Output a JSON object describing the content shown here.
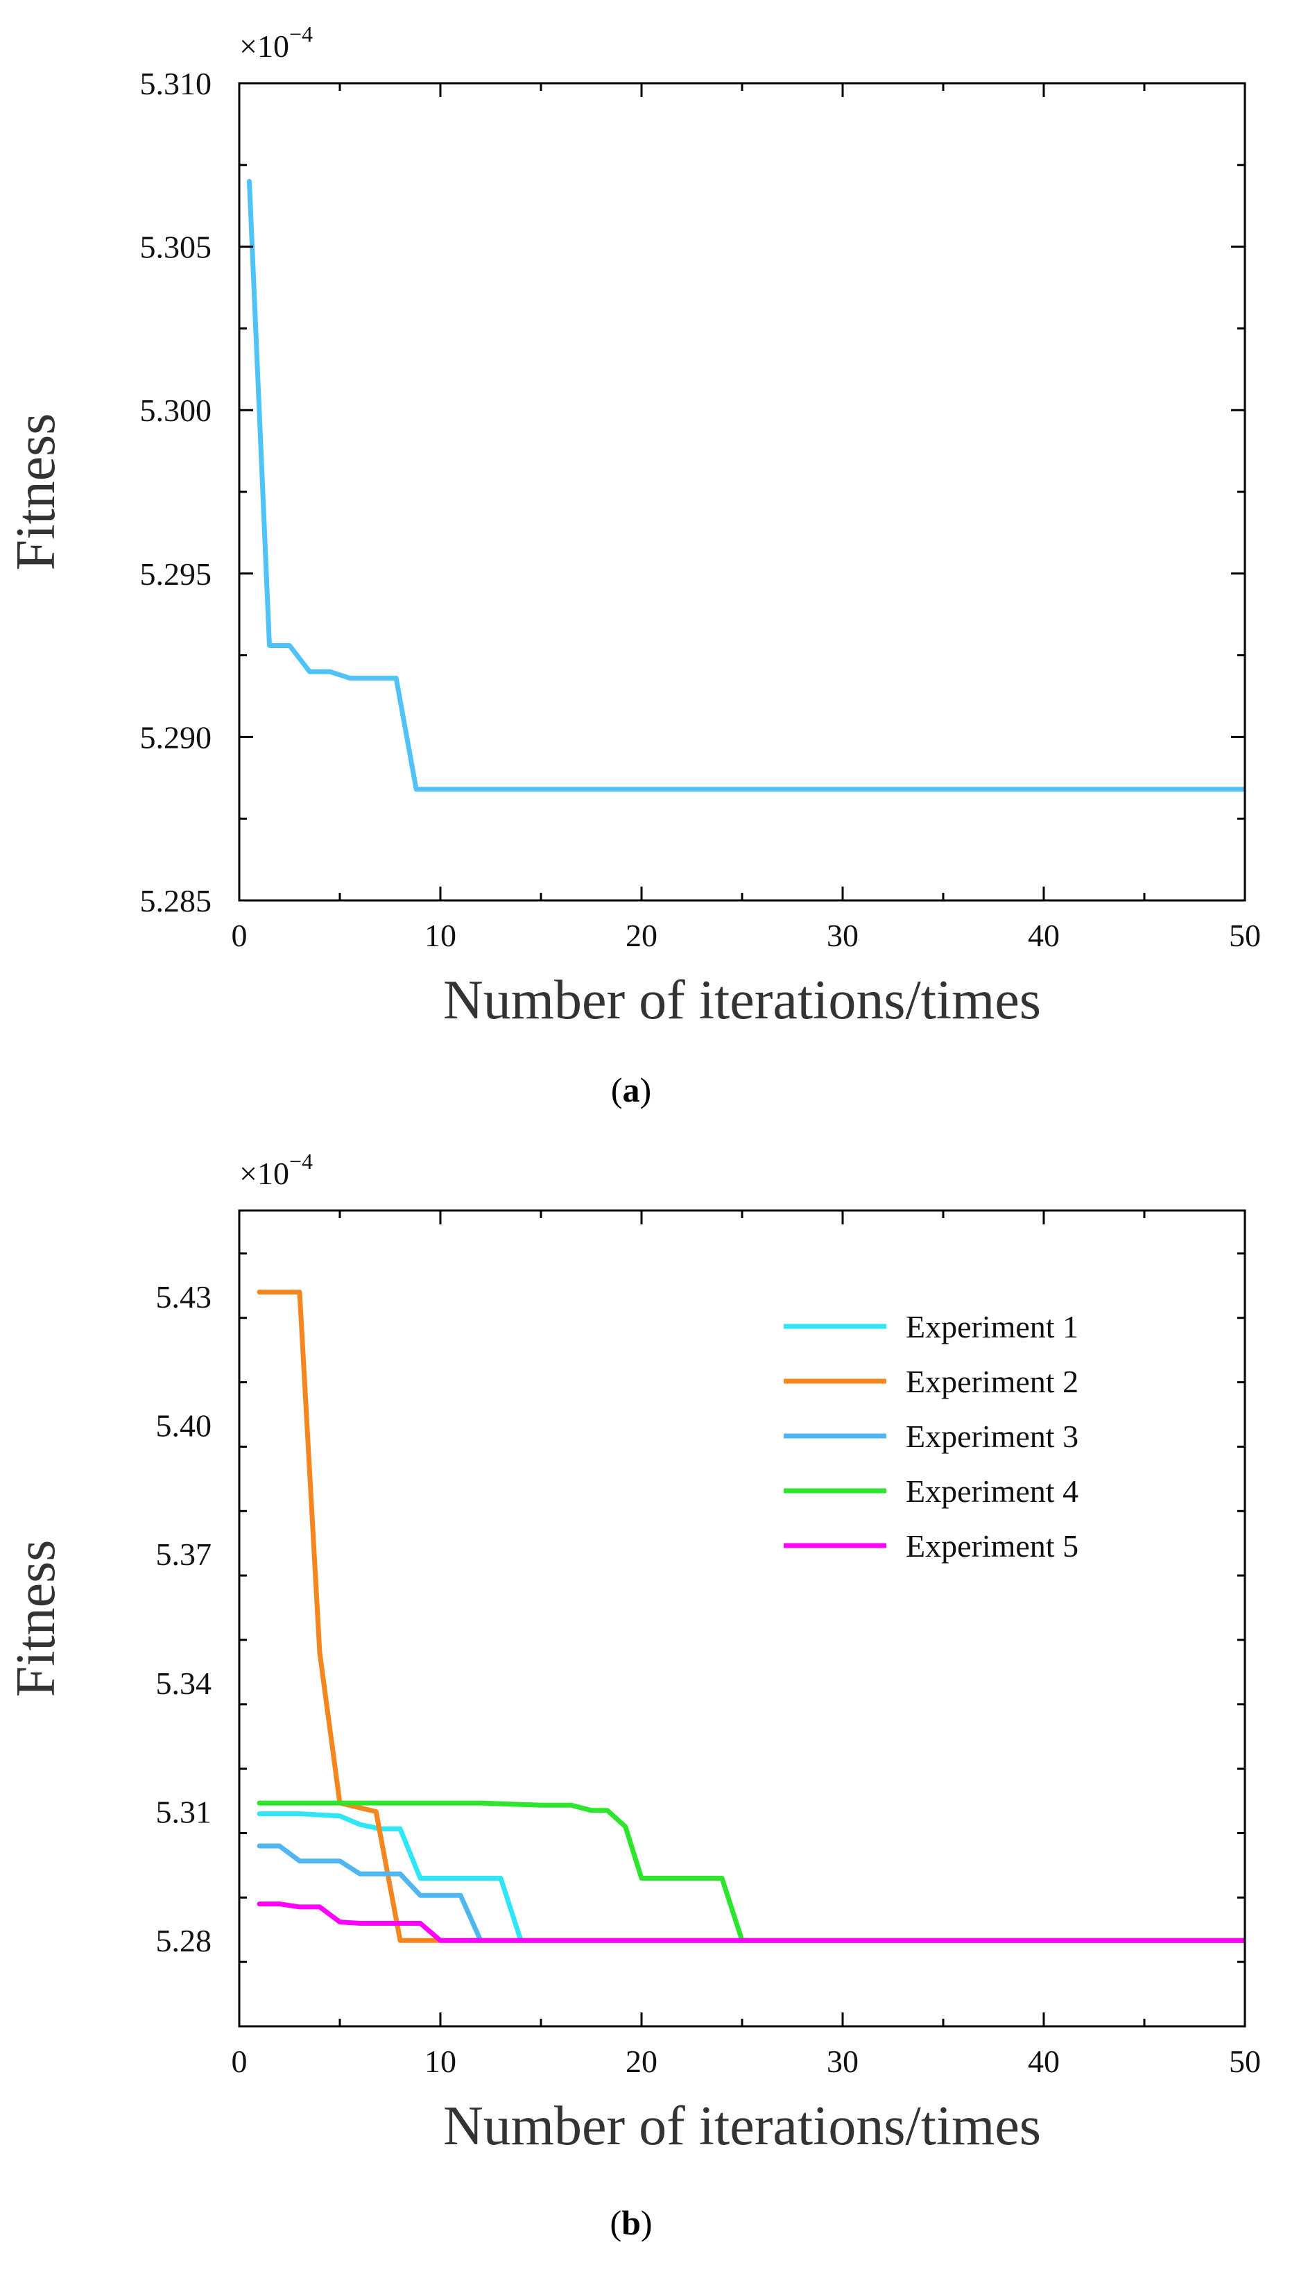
{
  "chart_data": [
    {
      "type": "line",
      "caption_label": "a",
      "xlabel": "Number of iterations/times",
      "ylabel": "Fitness",
      "multiplier_base": "×10",
      "multiplier_exp": "−4",
      "xlim": [
        0,
        50
      ],
      "ylim": [
        5.285,
        5.31
      ],
      "x_ticks": [
        0,
        10,
        20,
        30,
        40,
        50
      ],
      "x_tick_labels": [
        "0",
        "10",
        "20",
        "30",
        "40",
        "50"
      ],
      "y_ticks": [
        5.285,
        5.29,
        5.295,
        5.3,
        5.305,
        5.31
      ],
      "y_tick_labels": [
        "5.285",
        "5.290",
        "5.295",
        "5.300",
        "5.305",
        "5.310"
      ],
      "legend": null,
      "series": [
        {
          "name": "Fitness",
          "color": "#4fc3f7",
          "points": [
            [
              0.5,
              5.307
            ],
            [
              1.5,
              5.2928
            ],
            [
              2.5,
              5.2928
            ],
            [
              3.5,
              5.292
            ],
            [
              4.5,
              5.292
            ],
            [
              5.5,
              5.2918
            ],
            [
              7.8,
              5.2918
            ],
            [
              8.8,
              5.2884
            ],
            [
              50,
              5.2884
            ]
          ]
        }
      ]
    },
    {
      "type": "line",
      "caption_label": "b",
      "xlabel": "Number of iterations/times",
      "ylabel": "Fitness",
      "multiplier_base": "×10",
      "multiplier_exp": "−4",
      "xlim": [
        0,
        50
      ],
      "ylim": [
        5.26,
        5.45
      ],
      "x_ticks": [
        0,
        10,
        20,
        30,
        40,
        50
      ],
      "x_tick_labels": [
        "0",
        "10",
        "20",
        "30",
        "40",
        "50"
      ],
      "y_ticks": [
        5.28,
        5.31,
        5.34,
        5.37,
        5.4,
        5.43
      ],
      "y_tick_labels": [
        "5.28",
        "5.31",
        "5.34",
        "5.37",
        "5.40",
        "5.43"
      ],
      "legend": "top-right",
      "series": [
        {
          "name": "Experiment 1",
          "color": "#2ee6f6",
          "points": [
            [
              1,
              5.3095
            ],
            [
              3,
              5.3095
            ],
            [
              5,
              5.309
            ],
            [
              6,
              5.307
            ],
            [
              7,
              5.306
            ],
            [
              8,
              5.306
            ],
            [
              9,
              5.2945
            ],
            [
              13,
              5.2945
            ],
            [
              14,
              5.28
            ],
            [
              50,
              5.28
            ]
          ]
        },
        {
          "name": "Experiment 2",
          "color": "#f5851f",
          "points": [
            [
              1,
              5.431
            ],
            [
              3,
              5.431
            ],
            [
              4,
              5.347
            ],
            [
              5,
              5.312
            ],
            [
              6.8,
              5.31
            ],
            [
              8,
              5.28
            ],
            [
              10,
              5.28
            ],
            [
              50,
              5.28
            ]
          ]
        },
        {
          "name": "Experiment 3",
          "color": "#4fb6f0",
          "points": [
            [
              1,
              5.302
            ],
            [
              2,
              5.302
            ],
            [
              3,
              5.2985
            ],
            [
              5,
              5.2985
            ],
            [
              6,
              5.2955
            ],
            [
              8,
              5.2955
            ],
            [
              9,
              5.2905
            ],
            [
              11,
              5.2905
            ],
            [
              12,
              5.28
            ],
            [
              50,
              5.28
            ]
          ]
        },
        {
          "name": "Experiment 4",
          "color": "#2ee52e",
          "points": [
            [
              1,
              5.312
            ],
            [
              12,
              5.312
            ],
            [
              15,
              5.3115
            ],
            [
              16.5,
              5.3115
            ],
            [
              17.5,
              5.3103
            ],
            [
              18.3,
              5.3103
            ],
            [
              19.2,
              5.3065
            ],
            [
              20,
              5.2945
            ],
            [
              24,
              5.2945
            ],
            [
              25,
              5.28
            ],
            [
              50,
              5.28
            ]
          ]
        },
        {
          "name": "Experiment 5",
          "color": "#ff00ff",
          "points": [
            [
              1,
              5.2885
            ],
            [
              2,
              5.2885
            ],
            [
              3,
              5.2878
            ],
            [
              4,
              5.2878
            ],
            [
              5,
              5.2843
            ],
            [
              6,
              5.284
            ],
            [
              9,
              5.284
            ],
            [
              10,
              5.28
            ],
            [
              50,
              5.28
            ]
          ]
        }
      ]
    }
  ]
}
